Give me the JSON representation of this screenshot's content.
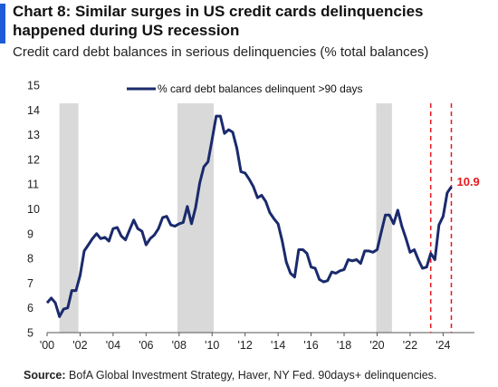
{
  "header": {
    "title": "Chart 8: Similar surges in US credit cards delinquencies happened during US recession",
    "subtitle": "Credit card debt balances in serious delinquencies (% total balances)"
  },
  "footer": {
    "source_label": "Source:",
    "source_text": "BofA Global Investment Strategy, Haver, NY Fed. 90days+ delinquencies."
  },
  "colors": {
    "line": "#1a2a6c",
    "recession": "#d9d9d9",
    "marker": "#e8191c",
    "accent": "#1f5bd8"
  },
  "chart_data": {
    "type": "line",
    "title": "Chart 8: Similar surges in US credit cards delinquencies happened during US recession",
    "subtitle": "Credit card debt balances in serious delinquencies (% total balances)",
    "xlim": [
      2000,
      2025.9
    ],
    "ylim": [
      5,
      15
    ],
    "yticks": [
      5,
      6,
      7,
      8,
      9,
      10,
      11,
      12,
      13,
      14,
      15
    ],
    "xticks": [
      {
        "value": 2000,
        "label": "'00"
      },
      {
        "value": 2002,
        "label": "'02"
      },
      {
        "value": 2004,
        "label": "'04"
      },
      {
        "value": 2006,
        "label": "'06"
      },
      {
        "value": 2008,
        "label": "'08"
      },
      {
        "value": 2010,
        "label": "'10"
      },
      {
        "value": 2012,
        "label": "'12"
      },
      {
        "value": 2014,
        "label": "'14"
      },
      {
        "value": 2016,
        "label": "'16"
      },
      {
        "value": 2018,
        "label": "'18"
      },
      {
        "value": 2020,
        "label": "'20"
      },
      {
        "value": 2022,
        "label": "'22"
      },
      {
        "value": 2024,
        "label": "'24"
      }
    ],
    "grid": false,
    "legend": {
      "position": "top-center",
      "label": "% card debt balances delinquent >90 days"
    },
    "recession_bands": [
      [
        2000.75,
        2001.9
      ],
      [
        2007.9,
        2010.1
      ],
      [
        2019.95,
        2020.9
      ]
    ],
    "marker_lines": [
      2023.25,
      2024.5
    ],
    "annotation": {
      "x": 2024.5,
      "y": 10.9,
      "label": "10.9"
    },
    "series": [
      {
        "name": "% card debt balances delinquent >90 days",
        "x": [
          2000.0,
          2000.25,
          2000.5,
          2000.75,
          2001.0,
          2001.25,
          2001.5,
          2001.75,
          2002.0,
          2002.25,
          2002.5,
          2002.75,
          2003.0,
          2003.25,
          2003.5,
          2003.75,
          2004.0,
          2004.25,
          2004.5,
          2004.75,
          2005.0,
          2005.25,
          2005.5,
          2005.75,
          2006.0,
          2006.25,
          2006.5,
          2006.75,
          2007.0,
          2007.25,
          2007.5,
          2007.75,
          2008.0,
          2008.25,
          2008.5,
          2008.75,
          2009.0,
          2009.25,
          2009.5,
          2009.75,
          2010.0,
          2010.25,
          2010.5,
          2010.75,
          2011.0,
          2011.25,
          2011.5,
          2011.75,
          2012.0,
          2012.25,
          2012.5,
          2012.75,
          2013.0,
          2013.25,
          2013.5,
          2013.75,
          2014.0,
          2014.25,
          2014.5,
          2014.75,
          2015.0,
          2015.25,
          2015.5,
          2015.75,
          2016.0,
          2016.25,
          2016.5,
          2016.75,
          2017.0,
          2017.25,
          2017.5,
          2017.75,
          2018.0,
          2018.25,
          2018.5,
          2018.75,
          2019.0,
          2019.25,
          2019.5,
          2019.75,
          2020.0,
          2020.25,
          2020.5,
          2020.75,
          2021.0,
          2021.25,
          2021.5,
          2021.75,
          2022.0,
          2022.25,
          2022.5,
          2022.75,
          2023.0,
          2023.25,
          2023.5,
          2023.75,
          2024.0,
          2024.25,
          2024.5
        ],
        "values": [
          6.2,
          6.4,
          6.2,
          5.65,
          5.95,
          6.0,
          6.7,
          6.7,
          7.3,
          8.3,
          8.55,
          8.8,
          9.0,
          8.8,
          8.85,
          8.7,
          9.2,
          9.25,
          8.9,
          8.75,
          9.15,
          9.55,
          9.2,
          9.1,
          8.55,
          8.8,
          8.95,
          9.2,
          9.65,
          9.7,
          9.35,
          9.3,
          9.4,
          9.45,
          10.1,
          9.4,
          10.05,
          11.05,
          11.7,
          11.9,
          12.8,
          13.75,
          13.75,
          13.05,
          13.2,
          13.1,
          12.45,
          11.5,
          11.45,
          11.2,
          10.9,
          10.45,
          10.55,
          10.3,
          9.85,
          9.6,
          9.4,
          8.7,
          7.85,
          7.4,
          7.25,
          8.35,
          8.35,
          8.2,
          7.65,
          7.6,
          7.15,
          7.05,
          7.1,
          7.45,
          7.4,
          7.5,
          7.55,
          7.95,
          7.9,
          7.95,
          7.8,
          8.3,
          8.3,
          8.25,
          8.35,
          9.05,
          9.75,
          9.75,
          9.4,
          9.95,
          9.3,
          8.8,
          8.25,
          8.35,
          7.95,
          7.6,
          7.65,
          8.2,
          7.95,
          9.35,
          9.7,
          10.65,
          10.9
        ]
      }
    ]
  }
}
